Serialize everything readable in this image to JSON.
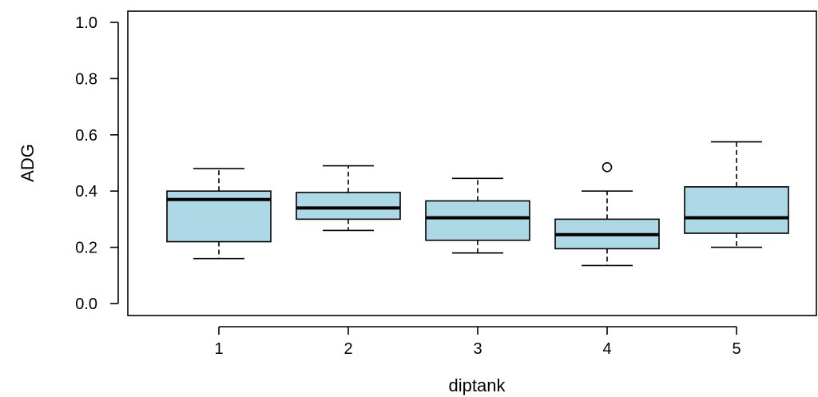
{
  "chart_data": {
    "type": "boxplot",
    "xlabel": "diptank",
    "ylabel": "ADG",
    "ylim": [
      0.0,
      1.0
    ],
    "yticks": [
      "0.0",
      "0.2",
      "0.4",
      "0.6",
      "0.8",
      "1.0"
    ],
    "box_color": "#add8e6",
    "grid": false,
    "groups": [
      {
        "label": "1",
        "min": 0.16,
        "q1": 0.22,
        "median": 0.37,
        "q3": 0.4,
        "max": 0.48,
        "outliers": []
      },
      {
        "label": "2",
        "min": 0.26,
        "q1": 0.3,
        "median": 0.34,
        "q3": 0.395,
        "max": 0.49,
        "outliers": []
      },
      {
        "label": "3",
        "min": 0.18,
        "q1": 0.225,
        "median": 0.305,
        "q3": 0.365,
        "max": 0.445,
        "outliers": []
      },
      {
        "label": "4",
        "min": 0.135,
        "q1": 0.195,
        "median": 0.245,
        "q3": 0.3,
        "max": 0.4,
        "outliers": [
          0.485
        ]
      },
      {
        "label": "5",
        "min": 0.2,
        "q1": 0.25,
        "median": 0.305,
        "q3": 0.415,
        "max": 0.575,
        "outliers": []
      }
    ]
  }
}
